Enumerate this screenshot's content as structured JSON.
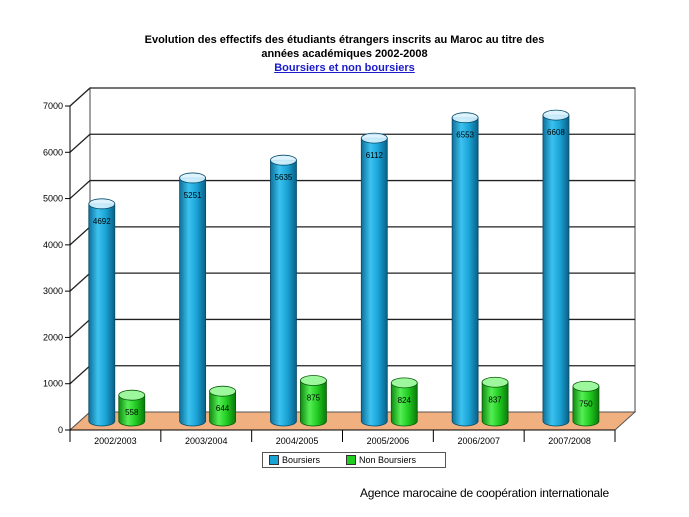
{
  "title": {
    "line1": "Evolution des effectifs des étudiants étrangers inscrits au Maroc au titre des",
    "line2": "années académiques   2002-2008",
    "line3": "Boursiers et non boursiers"
  },
  "footer": "Agence marocaine de coopération internationale",
  "colors": {
    "boursiers": "#1aa3d6",
    "non_boursiers": "#22cc22",
    "floor": "#f0b080"
  },
  "chart_data": {
    "type": "bar",
    "title": "Evolution des effectifs des étudiants étrangers inscrits au Maroc au titre des années académiques   2002-2008",
    "subtitle": "Boursiers et non boursiers",
    "categories": [
      "2002/2003",
      "2003/2004",
      "2004/2005",
      "2005/2006",
      "2006/2007",
      "2007/2008"
    ],
    "series": [
      {
        "name": "Boursiers",
        "values": [
          4692,
          5251,
          5635,
          6112,
          6553,
          6608
        ]
      },
      {
        "name": "Non Boursiers",
        "values": [
          558,
          644,
          875,
          824,
          837,
          750
        ]
      }
    ],
    "ylim": [
      0,
      7000
    ],
    "yticks": [
      "0",
      "1000",
      "2000",
      "3000",
      "4000",
      "5000",
      "6000",
      "7000"
    ],
    "grid": true,
    "legend": "bottom",
    "style": "3d-cylinder"
  }
}
